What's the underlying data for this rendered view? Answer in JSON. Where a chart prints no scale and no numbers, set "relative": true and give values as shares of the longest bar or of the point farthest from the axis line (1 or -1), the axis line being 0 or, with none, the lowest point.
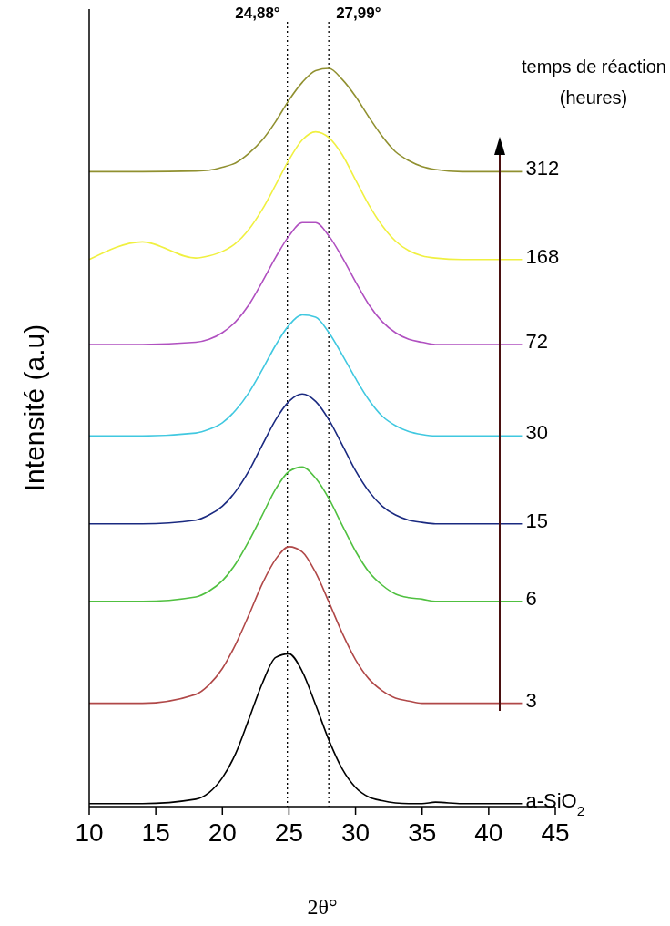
{
  "chart_data": {
    "type": "line",
    "relative": true,
    "xlabel": "2θ°",
    "ylabel": "Intensité (a.u)",
    "xlim": [
      10,
      45
    ],
    "xticks": [
      10,
      15,
      20,
      25,
      30,
      35,
      40,
      45
    ],
    "grid": false,
    "marker": "none",
    "line_style": "solid",
    "x": [
      10,
      14,
      18,
      19,
      20,
      21,
      22,
      23,
      24,
      25,
      26,
      27,
      28,
      29,
      30,
      31,
      32,
      33,
      34,
      35,
      36,
      38,
      42.5
    ],
    "series": [
      {
        "name": "a-SiO$_{2}$",
        "color": "#000000",
        "values": [
          0.004,
          0.004,
          0.01,
          0.019,
          0.039,
          0.072,
          0.119,
          0.167,
          0.202,
          0.207,
          0.183,
          0.138,
          0.09,
          0.051,
          0.026,
          0.013,
          0.008,
          0.005,
          0.004,
          0.004,
          0.006,
          0.004,
          0.004
        ]
      },
      {
        "name": "3",
        "color": "#b04848",
        "values": [
          0.14,
          0.14,
          0.152,
          0.165,
          0.187,
          0.22,
          0.26,
          0.302,
          0.335,
          0.352,
          0.345,
          0.317,
          0.277,
          0.235,
          0.199,
          0.173,
          0.157,
          0.147,
          0.143,
          0.14,
          0.14,
          0.14,
          0.14
        ]
      },
      {
        "name": "6",
        "color": "#50c040",
        "values": [
          0.278,
          0.278,
          0.284,
          0.292,
          0.306,
          0.329,
          0.36,
          0.395,
          0.43,
          0.454,
          0.46,
          0.445,
          0.417,
          0.381,
          0.346,
          0.318,
          0.3,
          0.288,
          0.283,
          0.281,
          0.278,
          0.278,
          0.278
        ]
      },
      {
        "name": "15",
        "color": "#1a2a80",
        "values": [
          0.383,
          0.383,
          0.388,
          0.395,
          0.407,
          0.427,
          0.455,
          0.49,
          0.524,
          0.549,
          0.559,
          0.549,
          0.524,
          0.49,
          0.455,
          0.427,
          0.407,
          0.395,
          0.388,
          0.385,
          0.383,
          0.383,
          0.383
        ]
      },
      {
        "name": "30",
        "color": "#40c8e0",
        "values": [
          0.502,
          0.502,
          0.506,
          0.511,
          0.52,
          0.537,
          0.561,
          0.592,
          0.625,
          0.652,
          0.666,
          0.663,
          0.642,
          0.612,
          0.58,
          0.551,
          0.529,
          0.516,
          0.508,
          0.504,
          0.502,
          0.502,
          0.502
        ]
      },
      {
        "name": "72",
        "color": "#b050c0",
        "values": [
          0.626,
          0.626,
          0.629,
          0.633,
          0.642,
          0.657,
          0.68,
          0.711,
          0.744,
          0.773,
          0.791,
          0.791,
          0.773,
          0.744,
          0.711,
          0.68,
          0.657,
          0.642,
          0.633,
          0.629,
          0.626,
          0.626,
          0.626
        ]
      },
      {
        "name": "168",
        "color": "#f0f040",
        "values": [
          0.741,
          0.765,
          0.743,
          0.746,
          0.752,
          0.763,
          0.782,
          0.809,
          0.842,
          0.876,
          0.903,
          0.914,
          0.906,
          0.883,
          0.849,
          0.815,
          0.787,
          0.766,
          0.753,
          0.746,
          0.743,
          0.741,
          0.741
        ]
      },
      {
        "name": "312",
        "color": "#909030",
        "values": [
          0.86,
          0.86,
          0.861,
          0.862,
          0.866,
          0.872,
          0.885,
          0.903,
          0.928,
          0.957,
          0.981,
          0.997,
          1.0,
          0.985,
          0.962,
          0.934,
          0.908,
          0.887,
          0.875,
          0.867,
          0.863,
          0.86,
          0.86
        ]
      }
    ],
    "ref_lines": [
      {
        "axis": "x",
        "value": 24.88,
        "label": "24,88°",
        "line_style": "dotted",
        "color": "#000000"
      },
      {
        "axis": "x",
        "value": 27.99,
        "label": "27,99°",
        "line_style": "dotted",
        "color": "#000000"
      }
    ],
    "annotations": [
      "temps de réaction",
      "(heures)"
    ]
  }
}
